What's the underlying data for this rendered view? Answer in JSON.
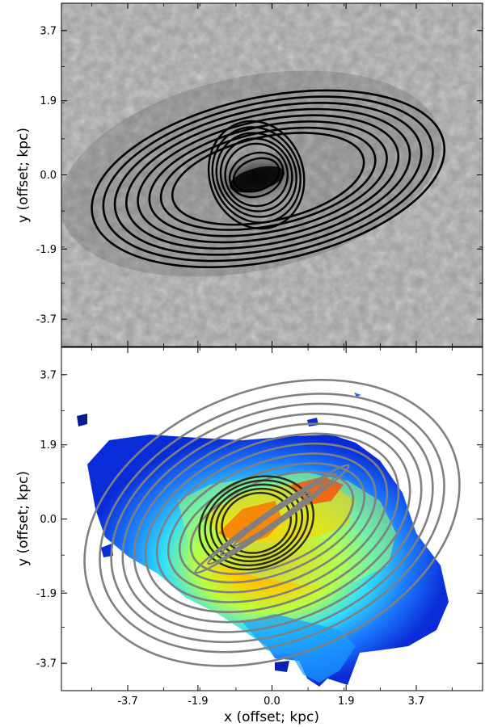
{
  "chart_data": [
    {
      "type": "contour",
      "panel": "top",
      "title": "",
      "xlabel": "",
      "ylabel": "y (offset; kpc)",
      "xlim": [
        -5.4,
        5.4
      ],
      "ylim": [
        -4.4,
        4.4
      ],
      "yticks": [
        "3.7",
        "1.9",
        "0.0",
        "-1.9",
        "-3.7"
      ],
      "background": "grayscale voronoi map",
      "contour_color": "#000000",
      "outer_ellipses": [
        {
          "cx": -0.1,
          "cy": -0.1,
          "rx": 4.6,
          "ry": 2.1,
          "angle_deg": -12
        },
        {
          "cx": -0.1,
          "cy": -0.1,
          "rx": 4.3,
          "ry": 1.95,
          "angle_deg": -12
        },
        {
          "cx": -0.1,
          "cy": -0.1,
          "rx": 4.0,
          "ry": 1.8,
          "angle_deg": -12
        },
        {
          "cx": -0.1,
          "cy": -0.1,
          "rx": 3.7,
          "ry": 1.65,
          "angle_deg": -12
        },
        {
          "cx": -0.1,
          "cy": -0.1,
          "rx": 3.4,
          "ry": 1.5,
          "angle_deg": -12
        },
        {
          "cx": -0.1,
          "cy": -0.1,
          "rx": 3.1,
          "ry": 1.35,
          "angle_deg": -12
        },
        {
          "cx": -0.1,
          "cy": -0.1,
          "rx": 2.8,
          "ry": 1.2,
          "angle_deg": -12
        },
        {
          "cx": -0.1,
          "cy": -0.1,
          "rx": 2.5,
          "ry": 1.08,
          "angle_deg": -12
        }
      ],
      "inner_ellipses": [
        {
          "cx": -0.4,
          "cy": 0.0,
          "rx": 1.2,
          "ry": 1.4,
          "angle_deg": -20
        },
        {
          "cx": -0.4,
          "cy": 0.0,
          "rx": 1.1,
          "ry": 1.25,
          "angle_deg": -25
        },
        {
          "cx": -0.4,
          "cy": 0.0,
          "rx": 1.0,
          "ry": 1.1,
          "angle_deg": -30
        },
        {
          "cx": -0.4,
          "cy": 0.0,
          "rx": 0.9,
          "ry": 0.95,
          "angle_deg": -35
        },
        {
          "cx": -0.4,
          "cy": 0.0,
          "rx": 0.8,
          "ry": 0.8,
          "angle_deg": -40
        },
        {
          "cx": -0.4,
          "cy": 0.0,
          "rx": 0.7,
          "ry": 0.55,
          "angle_deg": -20
        },
        {
          "cx": -0.4,
          "cy": 0.0,
          "rx": 0.6,
          "ry": 0.4,
          "angle_deg": -20
        }
      ]
    },
    {
      "type": "contour",
      "panel": "bottom",
      "title": "",
      "xlabel": "x (offset; kpc)",
      "ylabel": "y (offset; kpc)",
      "xlim": [
        -5.4,
        5.4
      ],
      "ylim": [
        -4.4,
        4.4
      ],
      "xticks": [
        "-3.7",
        "-1.9",
        "0.0",
        "1.9",
        "3.7"
      ],
      "yticks": [
        "3.7",
        "1.9",
        "0.0",
        "-1.9",
        "-3.7"
      ],
      "background": "jet colormap velocity map",
      "contour_color": "#808080",
      "outer_ellipses": [
        {
          "cx": 0.0,
          "cy": -0.1,
          "rx": 5.0,
          "ry": 3.4,
          "angle_deg": -22
        },
        {
          "cx": 0.0,
          "cy": -0.1,
          "rx": 4.6,
          "ry": 3.05,
          "angle_deg": -22
        },
        {
          "cx": 0.0,
          "cy": -0.1,
          "rx": 4.3,
          "ry": 2.8,
          "angle_deg": -22
        },
        {
          "cx": 0.0,
          "cy": -0.1,
          "rx": 4.0,
          "ry": 2.55,
          "angle_deg": -22
        },
        {
          "cx": 0.0,
          "cy": -0.1,
          "rx": 3.7,
          "ry": 2.3,
          "angle_deg": -22
        },
        {
          "cx": 0.0,
          "cy": -0.1,
          "rx": 3.4,
          "ry": 2.05,
          "angle_deg": -22
        },
        {
          "cx": 0.0,
          "cy": -0.1,
          "rx": 3.1,
          "ry": 1.8,
          "angle_deg": -22
        },
        {
          "cx": 0.0,
          "cy": -0.1,
          "rx": 2.8,
          "ry": 1.55,
          "angle_deg": -22
        },
        {
          "cx": 0.0,
          "cy": -0.1,
          "rx": 2.5,
          "ry": 1.3,
          "angle_deg": -22
        },
        {
          "cx": 0.0,
          "cy": -0.1,
          "rx": 2.2,
          "ry": 1.1,
          "angle_deg": -22
        }
      ],
      "inner_ellipses": [
        {
          "cx": -0.4,
          "cy": -0.1,
          "rx": 1.5,
          "ry": 1.15,
          "angle_deg": -20
        },
        {
          "cx": -0.4,
          "cy": -0.1,
          "rx": 1.35,
          "ry": 1.05,
          "angle_deg": -20
        },
        {
          "cx": -0.4,
          "cy": -0.1,
          "rx": 1.2,
          "ry": 0.95,
          "angle_deg": -20
        },
        {
          "cx": -0.4,
          "cy": -0.1,
          "rx": 1.05,
          "ry": 0.85,
          "angle_deg": -20
        },
        {
          "cx": -0.4,
          "cy": -0.1,
          "rx": 0.9,
          "ry": 0.75,
          "angle_deg": -20
        }
      ],
      "bar_ellipses": [
        {
          "cx": 0.0,
          "cy": 0.0,
          "rx": 2.4,
          "ry": 0.2,
          "angle_deg": -35
        },
        {
          "cx": 0.0,
          "cy": 0.0,
          "rx": 2.0,
          "ry": 0.17,
          "angle_deg": -35
        },
        {
          "cx": 0.0,
          "cy": 0.0,
          "rx": 1.6,
          "ry": 0.14,
          "angle_deg": -35
        },
        {
          "cx": 0.0,
          "cy": 0.0,
          "rx": 1.2,
          "ry": 0.1,
          "angle_deg": -35
        }
      ]
    }
  ]
}
